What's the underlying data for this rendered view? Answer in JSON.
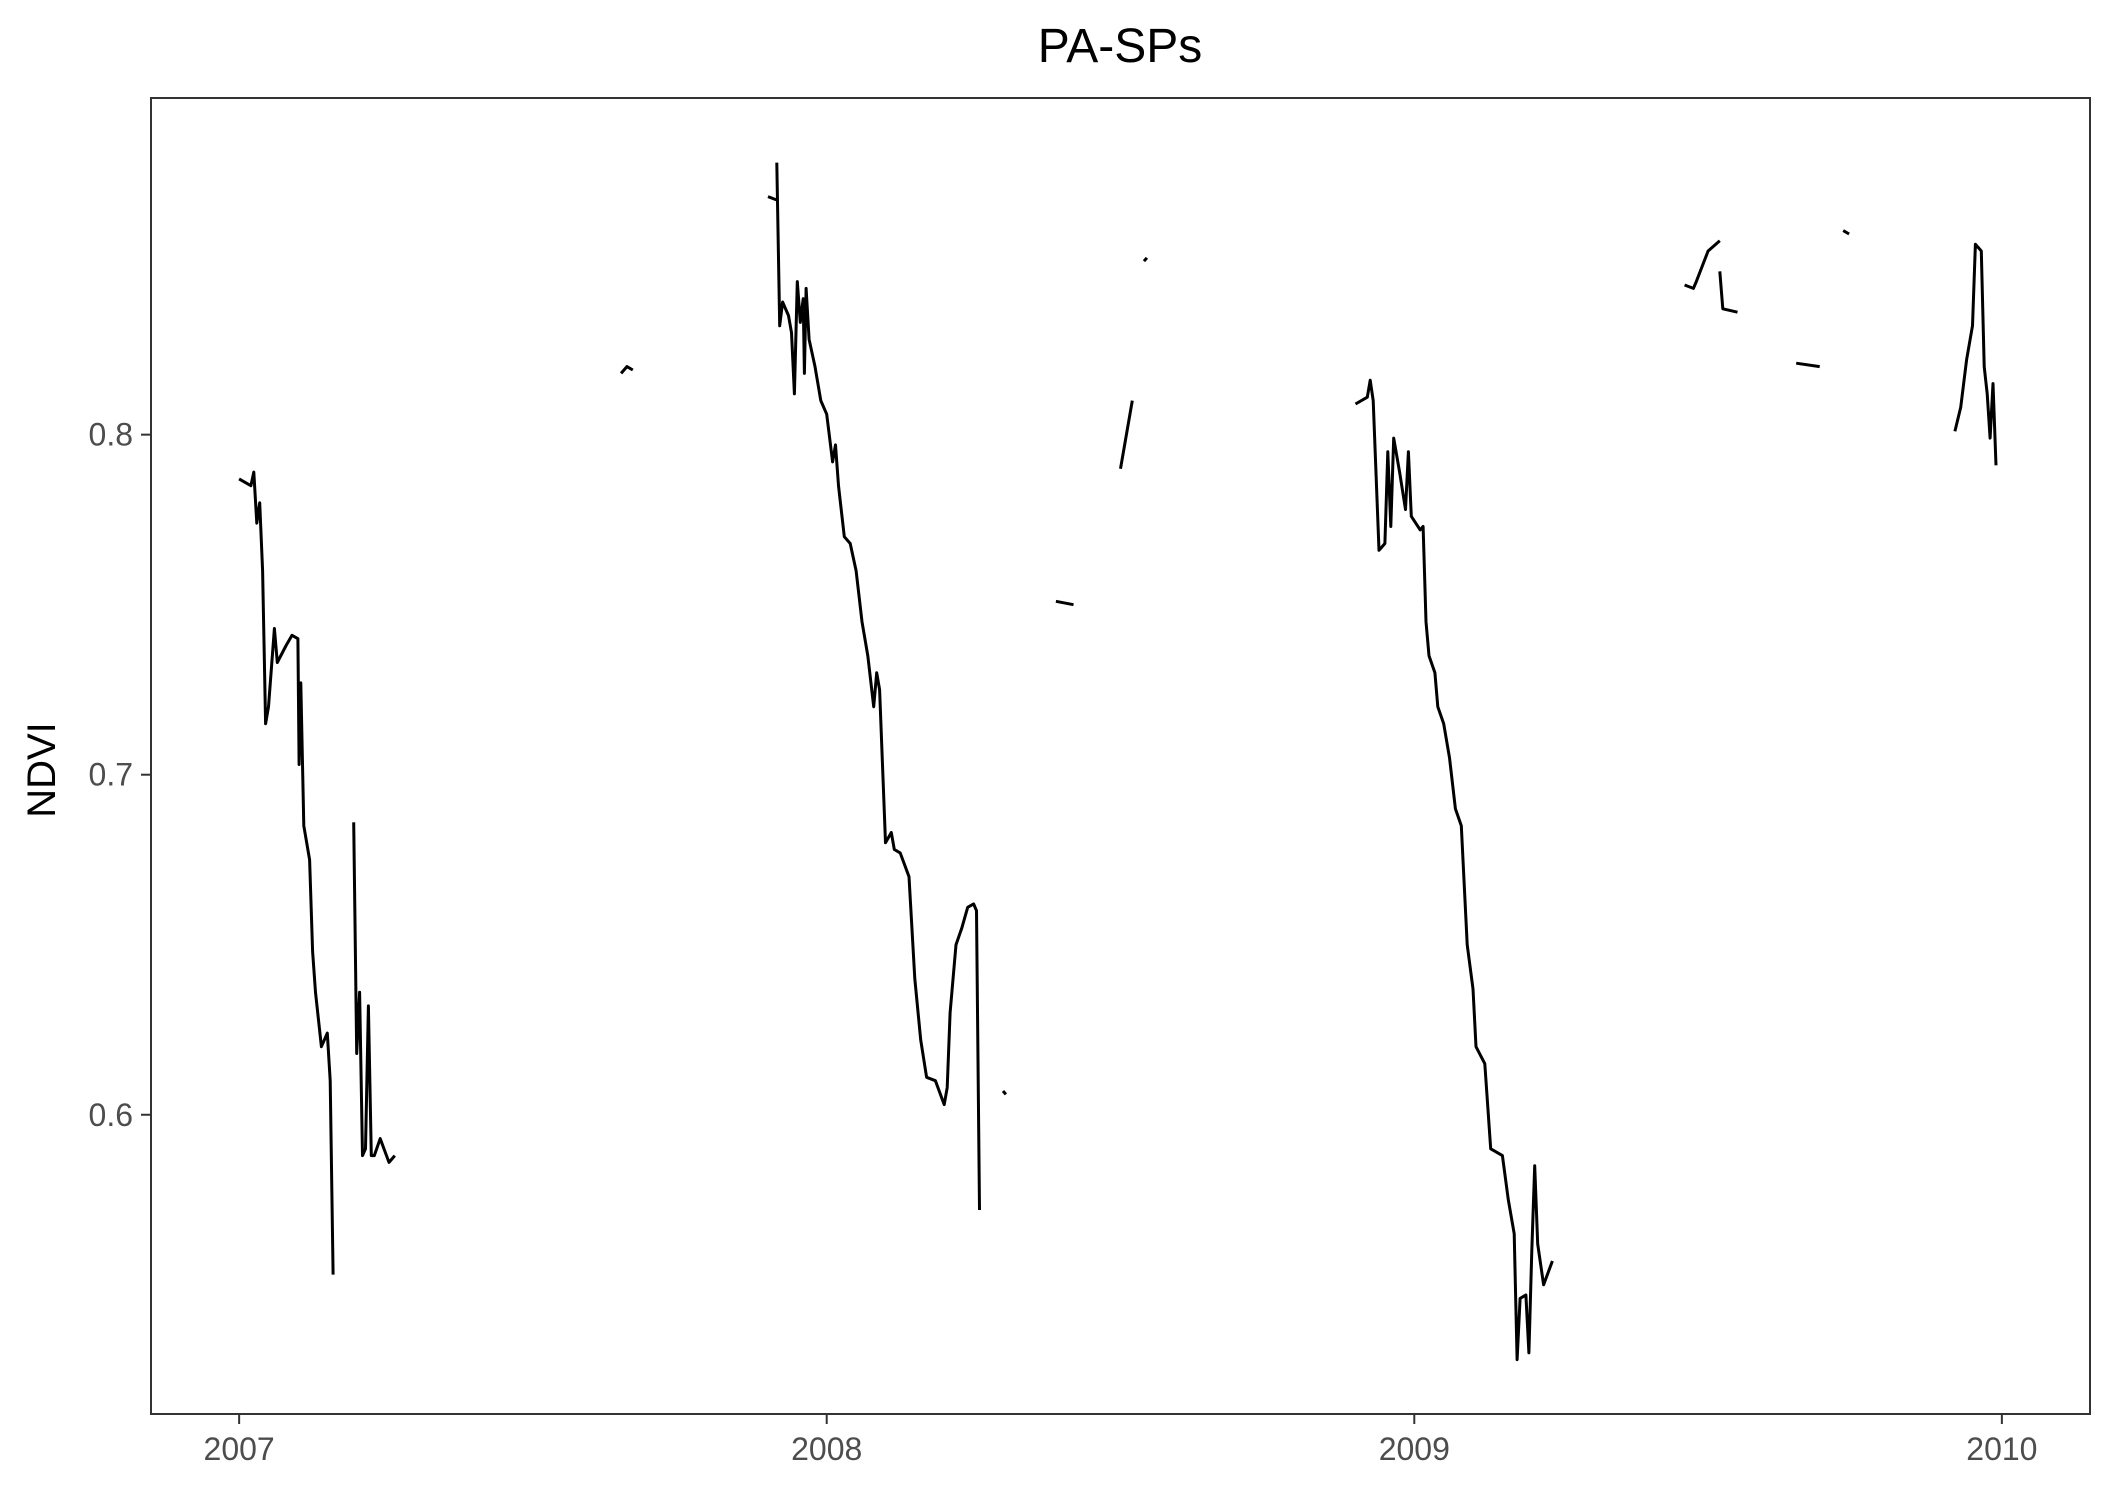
{
  "chart_data": {
    "type": "line",
    "title": "PA-SPs",
    "xlabel": "",
    "ylabel": "NDVI",
    "x_ticks": [
      "2007",
      "2008",
      "2009",
      "2010"
    ],
    "y_ticks": [
      "0.6",
      "0.7",
      "0.8"
    ],
    "xlim": [
      2006.85,
      2010.15
    ],
    "ylim": [
      0.512,
      0.899
    ],
    "grid": false,
    "line_color": "#000000",
    "series": [
      {
        "segments": [
          [
            [
              2007.0,
              0.787
            ],
            [
              2007.02,
              0.785
            ],
            [
              2007.025,
              0.789
            ],
            [
              2007.03,
              0.774
            ],
            [
              2007.035,
              0.78
            ],
            [
              2007.04,
              0.76
            ],
            [
              2007.045,
              0.715
            ],
            [
              2007.05,
              0.72
            ],
            [
              2007.06,
              0.743
            ],
            [
              2007.065,
              0.733
            ],
            [
              2007.08,
              0.738
            ],
            [
              2007.09,
              0.741
            ],
            [
              2007.1,
              0.74
            ],
            [
              2007.102,
              0.703
            ],
            [
              2007.105,
              0.727
            ],
            [
              2007.11,
              0.685
            ],
            [
              2007.12,
              0.675
            ],
            [
              2007.125,
              0.648
            ],
            [
              2007.13,
              0.636
            ],
            [
              2007.14,
              0.62
            ],
            [
              2007.15,
              0.624
            ],
            [
              2007.155,
              0.61
            ],
            [
              2007.16,
              0.553
            ]
          ],
          [
            [
              2007.195,
              0.686
            ],
            [
              2007.2,
              0.618
            ],
            [
              2007.205,
              0.636
            ],
            [
              2007.21,
              0.588
            ],
            [
              2007.215,
              0.59
            ],
            [
              2007.22,
              0.632
            ],
            [
              2007.225,
              0.588
            ],
            [
              2007.23,
              0.588
            ],
            [
              2007.24,
              0.593
            ],
            [
              2007.255,
              0.586
            ],
            [
              2007.265,
              0.588
            ]
          ],
          [
            [
              2007.65,
              0.818
            ],
            [
              2007.66,
              0.82
            ],
            [
              2007.67,
              0.819
            ]
          ],
          [
            [
              2007.9,
              0.87
            ],
            [
              2007.915,
              0.869
            ]
          ],
          [
            [
              2007.915,
              0.88
            ],
            [
              2007.92,
              0.832
            ],
            [
              2007.925,
              0.839
            ],
            [
              2007.935,
              0.835
            ],
            [
              2007.94,
              0.83
            ],
            [
              2007.945,
              0.812
            ],
            [
              2007.95,
              0.845
            ],
            [
              2007.955,
              0.833
            ],
            [
              2007.96,
              0.84
            ],
            [
              2007.962,
              0.818
            ],
            [
              2007.965,
              0.843
            ],
            [
              2007.97,
              0.828
            ],
            [
              2007.98,
              0.82
            ],
            [
              2007.99,
              0.81
            ],
            [
              2008.0,
              0.806
            ],
            [
              2008.01,
              0.792
            ],
            [
              2008.015,
              0.797
            ],
            [
              2008.02,
              0.785
            ],
            [
              2008.03,
              0.77
            ],
            [
              2008.04,
              0.768
            ],
            [
              2008.05,
              0.76
            ],
            [
              2008.06,
              0.745
            ],
            [
              2008.07,
              0.735
            ],
            [
              2008.08,
              0.72
            ],
            [
              2008.085,
              0.73
            ],
            [
              2008.09,
              0.725
            ],
            [
              2008.1,
              0.68
            ],
            [
              2008.11,
              0.683
            ],
            [
              2008.115,
              0.678
            ],
            [
              2008.125,
              0.677
            ],
            [
              2008.14,
              0.67
            ],
            [
              2008.15,
              0.64
            ],
            [
              2008.16,
              0.622
            ],
            [
              2008.17,
              0.611
            ],
            [
              2008.185,
              0.61
            ],
            [
              2008.2,
              0.603
            ],
            [
              2008.205,
              0.608
            ],
            [
              2008.21,
              0.63
            ],
            [
              2008.22,
              0.65
            ],
            [
              2008.23,
              0.655
            ],
            [
              2008.24,
              0.661
            ],
            [
              2008.25,
              0.662
            ],
            [
              2008.255,
              0.66
            ],
            [
              2008.26,
              0.572
            ]
          ],
          [
            [
              2008.3,
              0.607
            ],
            [
              2008.305,
              0.606
            ]
          ],
          [
            [
              2008.39,
              0.751
            ],
            [
              2008.42,
              0.75
            ]
          ],
          [
            [
              2008.5,
              0.79
            ],
            [
              2008.52,
              0.81
            ]
          ],
          [
            [
              2008.54,
              0.851
            ],
            [
              2008.545,
              0.852
            ]
          ],
          [
            [
              2008.9,
              0.809
            ],
            [
              2008.92,
              0.811
            ],
            [
              2008.925,
              0.816
            ],
            [
              2008.93,
              0.81
            ],
            [
              2008.94,
              0.766
            ],
            [
              2008.95,
              0.768
            ],
            [
              2008.955,
              0.795
            ],
            [
              2008.96,
              0.773
            ],
            [
              2008.965,
              0.799
            ],
            [
              2008.975,
              0.789
            ],
            [
              2008.985,
              0.778
            ],
            [
              2008.99,
              0.795
            ],
            [
              2008.995,
              0.776
            ],
            [
              2009.01,
              0.772
            ],
            [
              2009.015,
              0.773
            ],
            [
              2009.02,
              0.745
            ],
            [
              2009.025,
              0.735
            ],
            [
              2009.035,
              0.73
            ],
            [
              2009.04,
              0.72
            ],
            [
              2009.05,
              0.715
            ],
            [
              2009.06,
              0.705
            ],
            [
              2009.07,
              0.69
            ],
            [
              2009.08,
              0.685
            ],
            [
              2009.09,
              0.65
            ],
            [
              2009.1,
              0.637
            ],
            [
              2009.105,
              0.62
            ],
            [
              2009.12,
              0.615
            ],
            [
              2009.13,
              0.59
            ],
            [
              2009.15,
              0.588
            ],
            [
              2009.16,
              0.575
            ],
            [
              2009.17,
              0.565
            ],
            [
              2009.175,
              0.528
            ],
            [
              2009.18,
              0.546
            ],
            [
              2009.19,
              0.547
            ],
            [
              2009.195,
              0.53
            ],
            [
              2009.2,
              0.56
            ],
            [
              2009.205,
              0.585
            ],
            [
              2009.21,
              0.562
            ],
            [
              2009.22,
              0.55
            ],
            [
              2009.235,
              0.557
            ]
          ],
          [
            [
              2009.46,
              0.844
            ],
            [
              2009.475,
              0.843
            ],
            [
              2009.48,
              0.845
            ],
            [
              2009.5,
              0.854
            ],
            [
              2009.52,
              0.857
            ]
          ],
          [
            [
              2009.52,
              0.848
            ],
            [
              2009.525,
              0.837
            ],
            [
              2009.55,
              0.836
            ]
          ],
          [
            [
              2009.65,
              0.821
            ],
            [
              2009.69,
              0.82
            ]
          ],
          [
            [
              2009.73,
              0.86
            ],
            [
              2009.74,
              0.859
            ]
          ],
          [
            [
              2009.92,
              0.801
            ],
            [
              2009.93,
              0.808
            ],
            [
              2009.94,
              0.822
            ],
            [
              2009.95,
              0.832
            ],
            [
              2009.955,
              0.856
            ],
            [
              2009.965,
              0.854
            ],
            [
              2009.97,
              0.82
            ],
            [
              2009.975,
              0.812
            ],
            [
              2009.98,
              0.799
            ],
            [
              2009.985,
              0.815
            ],
            [
              2009.99,
              0.791
            ]
          ]
        ]
      }
    ]
  }
}
